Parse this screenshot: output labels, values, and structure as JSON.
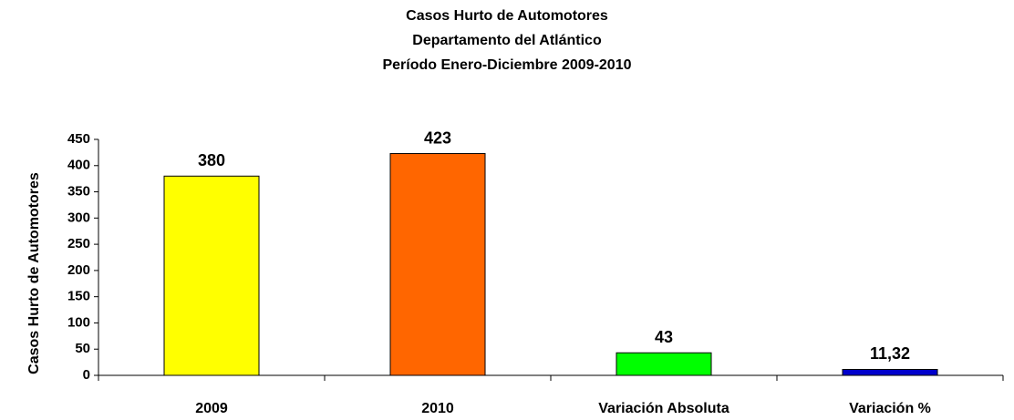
{
  "chart_data": {
    "type": "bar",
    "title": [
      "Casos Hurto de Automotores",
      "Departamento del Atlántico",
      "Período Enero-Diciembre 2009-2010"
    ],
    "ylabel": "Casos Hurto de Automotores",
    "categories": [
      "2009",
      "2010",
      "Variación Absoluta",
      "Variación %"
    ],
    "values": [
      380,
      423,
      43,
      11.32
    ],
    "value_labels": [
      "380",
      "423",
      "43",
      "11,32"
    ],
    "colors": [
      "#ffff00",
      "#ff6600",
      "#00ff00",
      "#0000cc"
    ],
    "ylim": [
      0,
      450
    ],
    "yticks": [
      0,
      50,
      100,
      150,
      200,
      250,
      300,
      350,
      400,
      450
    ]
  }
}
